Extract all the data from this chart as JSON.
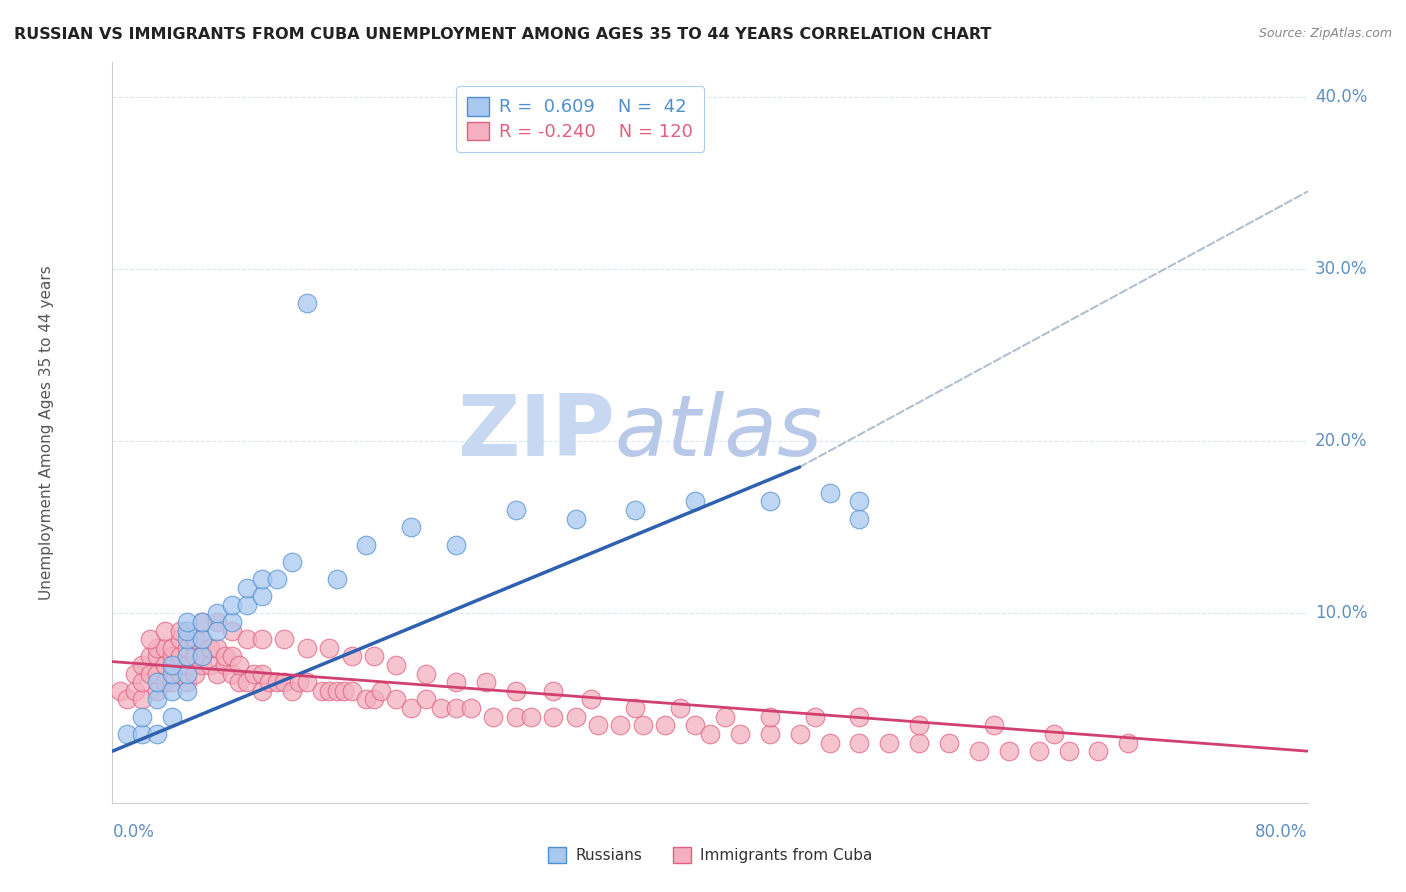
{
  "title": "RUSSIAN VS IMMIGRANTS FROM CUBA UNEMPLOYMENT AMONG AGES 35 TO 44 YEARS CORRELATION CHART",
  "source": "Source: ZipAtlas.com",
  "ylabel": "Unemployment Among Ages 35 to 44 years",
  "xmin": 0.0,
  "xmax": 0.8,
  "ymin": 0.0,
  "ymax": 0.42,
  "yticks": [
    0.0,
    0.1,
    0.2,
    0.3,
    0.4
  ],
  "ytick_labels": [
    "",
    "10.0%",
    "20.0%",
    "30.0%",
    "40.0%"
  ],
  "color_russian": "#A8C8F0",
  "color_cuba": "#F4B0C0",
  "color_russian_edge": "#5090D0",
  "color_cuba_edge": "#E06080",
  "color_russian_line": "#3060B0",
  "color_cuba_line": "#D04070",
  "color_dashed_line": "#B0C0D0",
  "title_color": "#222222",
  "axis_color": "#6090C0",
  "grid_color": "#D8E8F0",
  "watermark_color": "#C8D8F0",
  "russians_x": [
    0.01,
    0.02,
    0.02,
    0.03,
    0.03,
    0.03,
    0.04,
    0.04,
    0.04,
    0.04,
    0.05,
    0.05,
    0.05,
    0.05,
    0.05,
    0.05,
    0.06,
    0.06,
    0.06,
    0.07,
    0.07,
    0.08,
    0.08,
    0.09,
    0.09,
    0.1,
    0.1,
    0.11,
    0.12,
    0.13,
    0.15,
    0.17,
    0.2,
    0.23,
    0.27,
    0.31,
    0.35,
    0.39,
    0.44,
    0.48,
    0.5,
    0.5
  ],
  "russians_y": [
    0.03,
    0.03,
    0.04,
    0.03,
    0.05,
    0.06,
    0.04,
    0.055,
    0.065,
    0.07,
    0.055,
    0.065,
    0.075,
    0.085,
    0.09,
    0.095,
    0.075,
    0.085,
    0.095,
    0.09,
    0.1,
    0.095,
    0.105,
    0.105,
    0.115,
    0.11,
    0.12,
    0.12,
    0.13,
    0.28,
    0.12,
    0.14,
    0.15,
    0.14,
    0.16,
    0.155,
    0.16,
    0.165,
    0.165,
    0.17,
    0.155,
    0.165
  ],
  "cuba_x": [
    0.005,
    0.01,
    0.015,
    0.015,
    0.02,
    0.02,
    0.02,
    0.025,
    0.025,
    0.03,
    0.03,
    0.03,
    0.03,
    0.035,
    0.035,
    0.035,
    0.04,
    0.04,
    0.04,
    0.04,
    0.045,
    0.045,
    0.045,
    0.05,
    0.05,
    0.05,
    0.055,
    0.055,
    0.055,
    0.06,
    0.06,
    0.06,
    0.065,
    0.065,
    0.07,
    0.07,
    0.075,
    0.075,
    0.08,
    0.08,
    0.085,
    0.085,
    0.09,
    0.095,
    0.1,
    0.1,
    0.105,
    0.11,
    0.115,
    0.12,
    0.125,
    0.13,
    0.14,
    0.145,
    0.15,
    0.155,
    0.16,
    0.17,
    0.175,
    0.18,
    0.19,
    0.2,
    0.21,
    0.22,
    0.23,
    0.24,
    0.255,
    0.27,
    0.28,
    0.295,
    0.31,
    0.325,
    0.34,
    0.355,
    0.37,
    0.39,
    0.4,
    0.42,
    0.44,
    0.46,
    0.48,
    0.5,
    0.52,
    0.54,
    0.56,
    0.58,
    0.6,
    0.62,
    0.64,
    0.66,
    0.025,
    0.035,
    0.045,
    0.06,
    0.07,
    0.08,
    0.09,
    0.1,
    0.115,
    0.13,
    0.145,
    0.16,
    0.175,
    0.19,
    0.21,
    0.23,
    0.25,
    0.27,
    0.295,
    0.32,
    0.35,
    0.38,
    0.41,
    0.44,
    0.47,
    0.5,
    0.54,
    0.59,
    0.63,
    0.68
  ],
  "cuba_y": [
    0.055,
    0.05,
    0.055,
    0.065,
    0.05,
    0.06,
    0.07,
    0.065,
    0.075,
    0.055,
    0.065,
    0.075,
    0.08,
    0.06,
    0.07,
    0.08,
    0.06,
    0.07,
    0.075,
    0.08,
    0.065,
    0.075,
    0.085,
    0.06,
    0.07,
    0.08,
    0.065,
    0.075,
    0.085,
    0.07,
    0.075,
    0.085,
    0.07,
    0.08,
    0.065,
    0.08,
    0.07,
    0.075,
    0.065,
    0.075,
    0.06,
    0.07,
    0.06,
    0.065,
    0.055,
    0.065,
    0.06,
    0.06,
    0.06,
    0.055,
    0.06,
    0.06,
    0.055,
    0.055,
    0.055,
    0.055,
    0.055,
    0.05,
    0.05,
    0.055,
    0.05,
    0.045,
    0.05,
    0.045,
    0.045,
    0.045,
    0.04,
    0.04,
    0.04,
    0.04,
    0.04,
    0.035,
    0.035,
    0.035,
    0.035,
    0.035,
    0.03,
    0.03,
    0.03,
    0.03,
    0.025,
    0.025,
    0.025,
    0.025,
    0.025,
    0.02,
    0.02,
    0.02,
    0.02,
    0.02,
    0.085,
    0.09,
    0.09,
    0.095,
    0.095,
    0.09,
    0.085,
    0.085,
    0.085,
    0.08,
    0.08,
    0.075,
    0.075,
    0.07,
    0.065,
    0.06,
    0.06,
    0.055,
    0.055,
    0.05,
    0.045,
    0.045,
    0.04,
    0.04,
    0.04,
    0.04,
    0.035,
    0.035,
    0.03,
    0.025
  ],
  "russian_line_x": [
    0.0,
    0.46
  ],
  "russian_line_y": [
    0.02,
    0.185
  ],
  "cuba_line_x": [
    0.0,
    0.8
  ],
  "cuba_line_y": [
    0.072,
    0.02
  ],
  "dashed_line_x": [
    0.46,
    0.8
  ],
  "dashed_line_y": [
    0.185,
    0.345
  ]
}
